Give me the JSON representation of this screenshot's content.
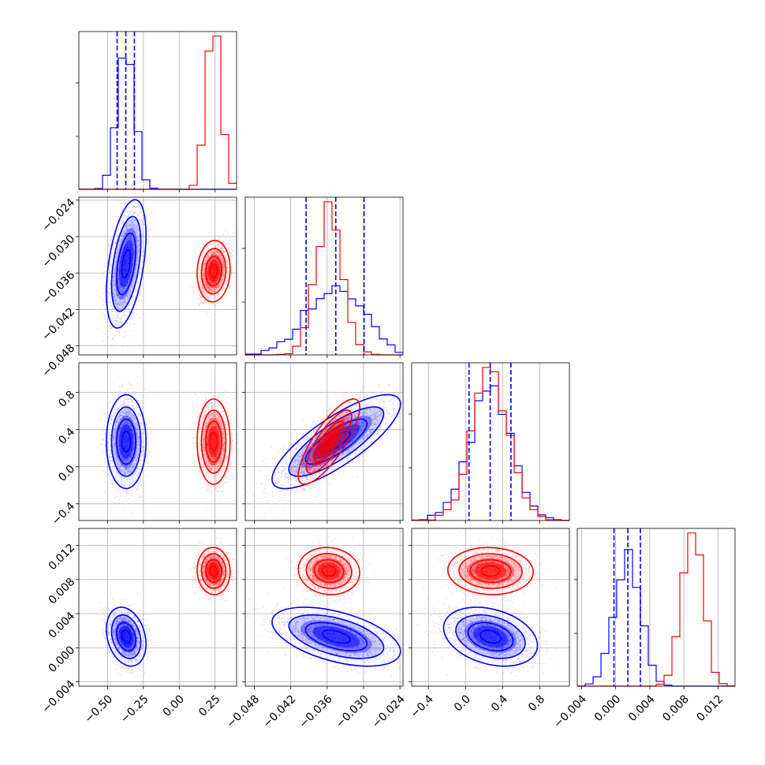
{
  "chart_data": {
    "type": "corner",
    "parameters": [
      {
        "ticks": [
          "−0.50",
          "−0.25",
          "0.00",
          "0.25"
        ],
        "tick_values": [
          -0.5,
          -0.25,
          0.0,
          0.25
        ],
        "range": [
          -0.7,
          0.4
        ]
      },
      {
        "ticks": [
          "−0.048",
          "−0.042",
          "−0.036",
          "−0.030",
          "−0.024"
        ],
        "tick_values": [
          -0.048,
          -0.042,
          -0.036,
          -0.03,
          -0.024
        ],
        "range": [
          -0.0495,
          -0.0235
        ]
      },
      {
        "ticks": [
          "−0.4",
          "0.0",
          "0.4",
          "0.8"
        ],
        "tick_values": [
          -0.4,
          0.0,
          0.4,
          0.8
        ],
        "range": [
          -0.58,
          1.12
        ]
      },
      {
        "ticks": [
          "−0.004",
          "0.000",
          "0.004",
          "0.008",
          "0.012"
        ],
        "tick_values": [
          -0.004,
          0.0,
          0.004,
          0.008,
          0.012
        ],
        "range": [
          -0.0045,
          0.014
        ]
      }
    ],
    "series": [
      {
        "color": "#0000ff",
        "means": [
          -0.37,
          -0.0345,
          0.27,
          0.0013
        ],
        "sigmas": [
          0.06,
          0.0046,
          0.22,
          0.0015
        ]
      },
      {
        "color": "#ff0000",
        "means": [
          0.24,
          -0.0357,
          0.27,
          0.009
        ],
        "sigmas": [
          0.05,
          0.0022,
          0.2,
          0.0012
        ]
      }
    ],
    "quantiles": {
      "color": "#0000ff",
      "series_index": 0
    },
    "grid": true,
    "legend": "none"
  }
}
